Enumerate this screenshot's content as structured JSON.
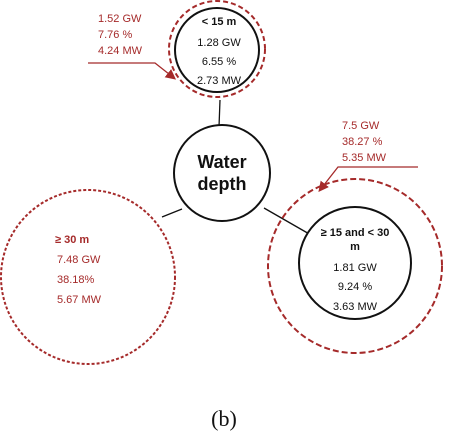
{
  "center": {
    "line1": "Water",
    "line2": "depth"
  },
  "shallow": {
    "label": "< 15 m",
    "inner": [
      "1.28 GW",
      "6.55 %",
      "2.73 MW"
    ],
    "outer": [
      "1.52 GW",
      "7.76 %",
      "4.24 MW"
    ]
  },
  "medium": {
    "label_line1": "≥ 15 and < 30",
    "label_line2": "m",
    "inner": [
      "1.81 GW",
      "9.24 %",
      "3.63 MW"
    ],
    "outer": [
      "7.5 GW",
      "38.27 %",
      "5.35 MW"
    ]
  },
  "deep": {
    "label": "≥ 30 m",
    "values": [
      "7.48 GW",
      "38.18%",
      "5.67 MW"
    ]
  },
  "caption": "(b)",
  "colors": {
    "outer": "#a52a2a",
    "inner": "#111111"
  }
}
